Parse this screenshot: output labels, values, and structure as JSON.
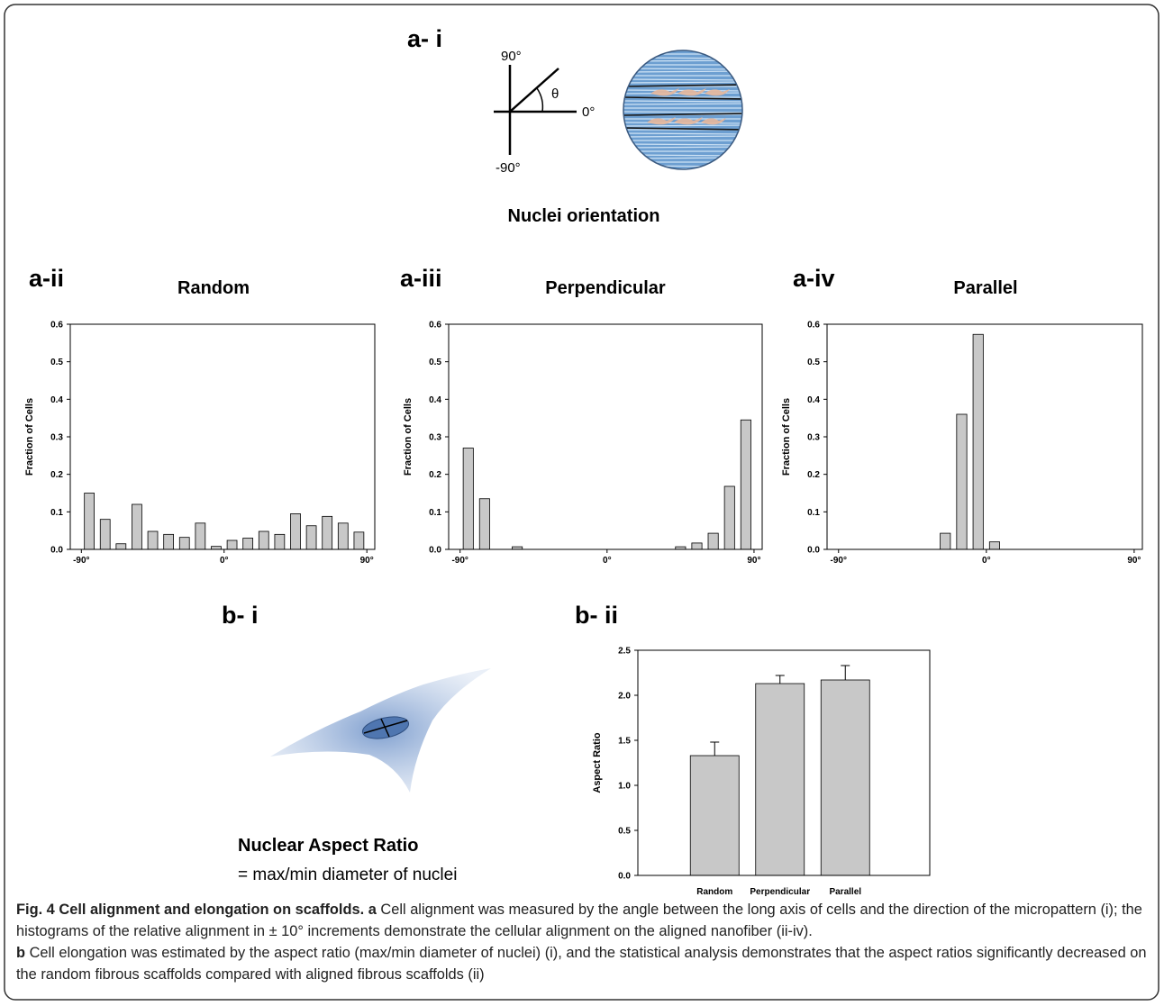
{
  "panel_labels": [
    "a- i",
    "a-ii",
    "a-iii",
    "a-iv",
    "b- i",
    "b- ii"
  ],
  "diagram": {
    "labels": [
      "90°",
      "θ",
      "0°",
      "-90°"
    ],
    "title": "Nuclei orientation"
  },
  "aspect_ratio": {
    "title": "Nuclear Aspect Ratio",
    "formula": "= max/min diameter of nuclei"
  },
  "chart_data": [
    {
      "type": "histogram",
      "title": "Random",
      "y_label": "Fraction of Cells",
      "bins": [
        -90,
        -80,
        -70,
        -60,
        -50,
        -40,
        -30,
        -20,
        -10,
        0,
        10,
        20,
        30,
        40,
        50,
        60,
        70,
        80,
        90
      ],
      "values": [
        0.15,
        0.08,
        0.015,
        0.12,
        0.048,
        0.04,
        0.032,
        0.07,
        0.008,
        0.024,
        0.03,
        0.048,
        0.04,
        0.095,
        0.063,
        0.088,
        0.07,
        0.046
      ],
      "color": "#c8c8c8",
      "xlim": [
        -97,
        95
      ],
      "xticks": [
        {
          "value": -90,
          "label": "-90°"
        },
        {
          "value": 0,
          "label": "0°"
        },
        {
          "value": 90,
          "label": "90°"
        }
      ],
      "ylim": [
        0,
        0.6
      ],
      "yticks": [
        {
          "value": 0,
          "label": "0.0"
        },
        0.1,
        0.2,
        0.3,
        0.4,
        0.5,
        0.6
      ]
    },
    {
      "type": "histogram",
      "title": "Perpendicular",
      "y_label": "Fraction of Cells",
      "bins": [
        -90,
        -80,
        -70,
        -60,
        -50,
        -40,
        -30,
        -20,
        -10,
        0,
        10,
        20,
        30,
        40,
        50,
        60,
        70,
        80,
        90
      ],
      "values": [
        0.27,
        0.135,
        0,
        0.007,
        0,
        0,
        0,
        0,
        0,
        0,
        0,
        0,
        0,
        0.007,
        0.017,
        0.043,
        0.168,
        0.345
      ],
      "color": "#c8c8c8",
      "xlim": [
        -97,
        95
      ],
      "xticks": [
        {
          "value": -90,
          "label": "-90°"
        },
        {
          "value": 0,
          "label": "0°"
        },
        {
          "value": 90,
          "label": "90°"
        }
      ],
      "ylim": [
        0,
        0.6
      ],
      "yticks": [
        {
          "value": 0,
          "label": "0.0"
        },
        0.1,
        0.2,
        0.3,
        0.4,
        0.5,
        0.6
      ]
    },
    {
      "type": "histogram",
      "title": "Parallel",
      "y_label": "Fraction of Cells",
      "bins": [
        -90,
        -80,
        -70,
        -60,
        -50,
        -40,
        -30,
        -20,
        -10,
        0,
        10,
        20,
        30,
        40,
        50,
        60,
        70,
        80,
        90
      ],
      "values": [
        0,
        0,
        0,
        0,
        0,
        0,
        0.043,
        0.36,
        0.573,
        0.02,
        0,
        0,
        0,
        0,
        0,
        0,
        0,
        0
      ],
      "color": "#c8c8c8",
      "xlim": [
        -97,
        95
      ],
      "xticks": [
        {
          "value": -90,
          "label": "-90°"
        },
        {
          "value": 0,
          "label": "0°"
        },
        {
          "value": 90,
          "label": "90°"
        }
      ],
      "ylim": [
        0,
        0.6
      ],
      "yticks": [
        {
          "value": 0,
          "label": "0.0"
        },
        0.1,
        0.2,
        0.3,
        0.4,
        0.5,
        0.6
      ]
    },
    {
      "type": "bar",
      "y_label": "Aspect Ratio",
      "categories": [
        "Random",
        "Perpendicular",
        "Parallel"
      ],
      "values": [
        1.33,
        2.13,
        2.17
      ],
      "errors": [
        0.15,
        0.09,
        0.16
      ],
      "color": "#c8c8c8",
      "ylim": [
        0,
        2.5
      ],
      "yticks": [
        {
          "value": 0,
          "label": "0.0"
        },
        0.5,
        {
          "value": 1,
          "label": "1.0"
        },
        1.5,
        {
          "value": 2,
          "label": "2.0"
        },
        2.5
      ]
    }
  ],
  "caption": {
    "label": "Fig. 4",
    "title": "Cell alignment and elongation on scaffolds.",
    "parts": [
      {
        "label": "a",
        "text": "Cell alignment was measured by the angle between the long axis of cells and the direction of the micropattern (i); the histograms of the relative alignment in ± 10° increments demonstrate the cellular alignment on the aligned nanofiber (ii-iv)."
      },
      {
        "label": "b",
        "text": "Cell elongation was estimated by the aspect ratio (max/min diameter of nuclei) (i), and the statistical analysis demonstrates that the aspect ratios significantly decreased on the random fibrous scaffolds compared with aligned fibrous scaffolds (ii)"
      }
    ]
  }
}
